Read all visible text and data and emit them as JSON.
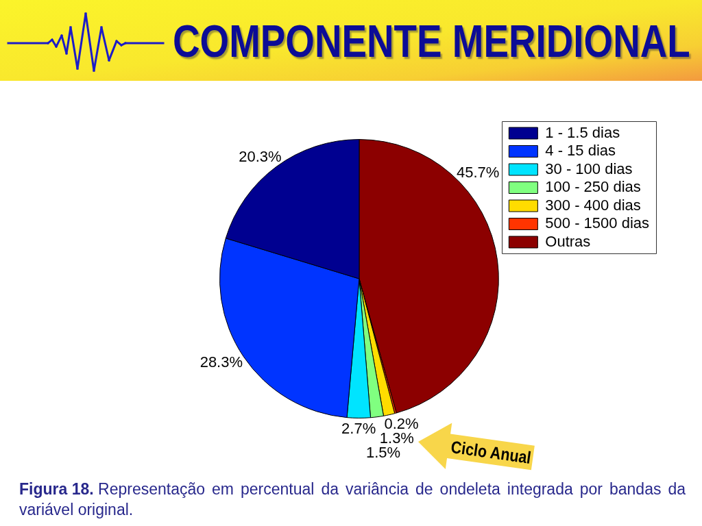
{
  "chart_data": {
    "type": "pie",
    "title": "COMPONENTE MERIDIONAL",
    "categories": [
      "1 - 1.5 dias",
      "4 - 15 dias",
      "30 - 100 dias",
      "100 - 250 dias",
      "300 - 400 dias",
      "500 - 1500 dias",
      "Outras"
    ],
    "values": [
      20.3,
      28.3,
      2.7,
      1.5,
      1.3,
      0.2,
      45.7
    ],
    "value_labels": [
      "20.3%",
      "28.3%",
      "2.7%",
      "1.5%",
      "1.3%",
      "0.2%",
      "45.7%"
    ],
    "colors": [
      "#000090",
      "#0034ff",
      "#00e4ff",
      "#80ff80",
      "#ffdc00",
      "#ff3400",
      "#8c0000"
    ],
    "legend": "top right",
    "annotations": [
      {
        "text": "Ciclo Anual",
        "x": "300 - 400 dias"
      },
      "Figura 18. Representação em percentual da variância de ondeleta integrada por bandas da variável original."
    ]
  }
}
